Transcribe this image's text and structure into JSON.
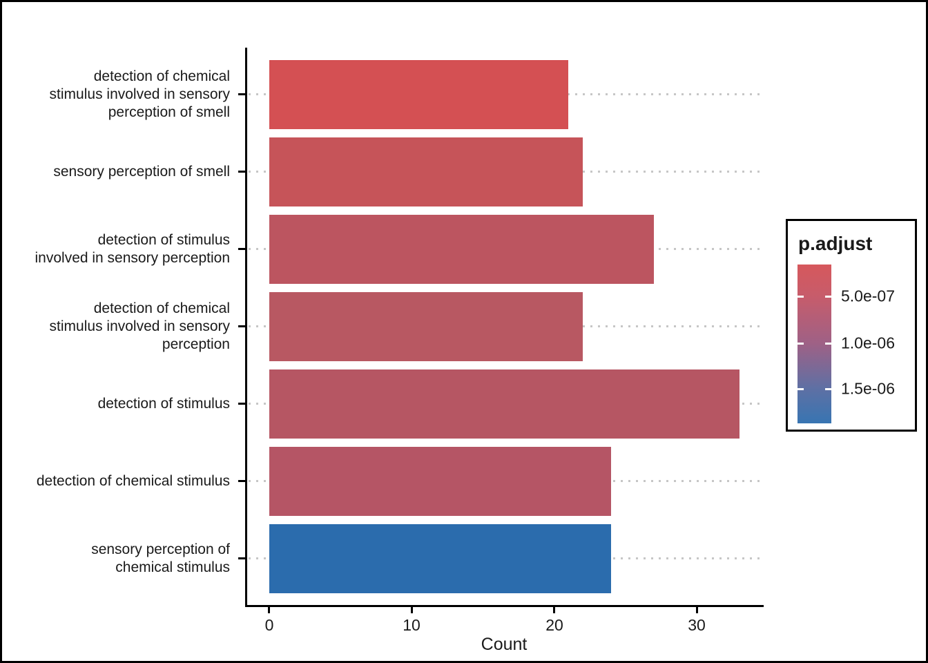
{
  "figure": {
    "background": "#ffffff",
    "outer_border_color": "#000000",
    "axis_color": "#000000",
    "dotted_line_color": "#c6c6c6"
  },
  "chart_data": {
    "type": "bar",
    "orientation": "horizontal",
    "title": "",
    "xlabel": "Count",
    "ylabel": "",
    "xlim": [
      0,
      33
    ],
    "x_ticks": [
      "0",
      "10",
      "20",
      "30"
    ],
    "x_tick_values": [
      0,
      10,
      20,
      30
    ],
    "grid": "dotted gray horizontal reference line behind each bar",
    "legend_position": "right",
    "categories": [
      {
        "label": "detection of chemical stimulus involved in sensory perception of smell",
        "lines": [
          "detection of chemical",
          "stimulus involved in sensory",
          "perception of smell"
        ],
        "value": 21,
        "color": "#d45053"
      },
      {
        "label": "sensory perception of smell",
        "lines": [
          "sensory perception of smell"
        ],
        "value": 22,
        "color": "#c65459"
      },
      {
        "label": "detection of stimulus involved in sensory perception",
        "lines": [
          "detection of stimulus",
          "involved in sensory perception"
        ],
        "value": 27,
        "color": "#bc5560"
      },
      {
        "label": "detection of chemical stimulus involved in sensory perception",
        "lines": [
          "detection of chemical",
          "stimulus involved in sensory",
          "perception"
        ],
        "value": 22,
        "color": "#b85862"
      },
      {
        "label": "detection of stimulus",
        "lines": [
          "detection of stimulus"
        ],
        "value": 33,
        "color": "#b65663"
      },
      {
        "label": "detection of chemical stimulus",
        "lines": [
          "detection of chemical stimulus"
        ],
        "value": 24,
        "color": "#b55565"
      },
      {
        "label": "sensory perception of chemical stimulus",
        "lines": [
          "sensory perception of",
          "chemical stimulus"
        ],
        "value": 24,
        "color": "#2b6cad"
      }
    ],
    "legend": {
      "title": "p.adjust",
      "type": "continuous-gradient",
      "tick_labels": [
        "5.0e-07",
        "1.0e-06",
        "1.5e-06"
      ],
      "gradient_stops": [
        "#d6585c 0%",
        "#c75c6b 20%",
        "#9e6186 50%",
        "#5e70a4 78%",
        "#3875b2 100%"
      ]
    }
  }
}
